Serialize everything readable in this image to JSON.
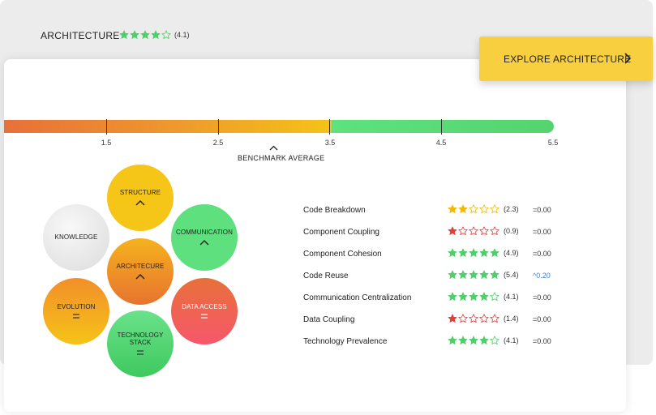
{
  "header": {
    "title": "ARCHITECTURE",
    "rating": 4,
    "rating_text": "(4.1)",
    "explore_label": "EXPLORE ARCHITECTURE"
  },
  "scale": {
    "ticks": [
      "1.5",
      "2.5",
      "3.5",
      "4.5",
      "5.5"
    ],
    "benchmark_label": "BENCHMARK AVERAGE",
    "colors": {
      "low": "#e8703a",
      "mid": "#f5c318",
      "high": "#55d36f"
    }
  },
  "circles": {
    "structure": "STRUCTURE",
    "knowledge": "KNOWLEDGE",
    "communication": "COMMUNICATION",
    "architecture": "ARCHITECURE",
    "evolution": "EVOLUTION",
    "data_access": "DATA ACCESS",
    "technology_stack": "TECHNOLOGY STACK"
  },
  "metrics": [
    {
      "name": "Code Breakdown",
      "stars": 2,
      "color": "#f5b800",
      "rating": "(2.3)",
      "delta": "=0.00"
    },
    {
      "name": "Component Coupling",
      "stars": 1,
      "color": "#e0413a",
      "rating": "(0.9)",
      "delta": "=0.00"
    },
    {
      "name": "Component Cohesion",
      "stars": 5,
      "color": "#4fcf6b",
      "rating": "(4.9)",
      "delta": "=0.00"
    },
    {
      "name": "Code Reuse",
      "stars": 5,
      "color": "#4fcf6b",
      "rating": "(5.4)",
      "delta": "^0.20"
    },
    {
      "name": "Communication Centralization",
      "stars": 4,
      "color": "#4fcf6b",
      "rating": "(4.1)",
      "delta": "=0.00"
    },
    {
      "name": "Data Coupling",
      "stars": 1,
      "color": "#e0413a",
      "rating": "(1.4)",
      "delta": "=0.00"
    },
    {
      "name": "Technology Prevalence",
      "stars": 4,
      "color": "#4fcf6b",
      "rating": "(4.1)",
      "delta": "=0.00"
    }
  ]
}
